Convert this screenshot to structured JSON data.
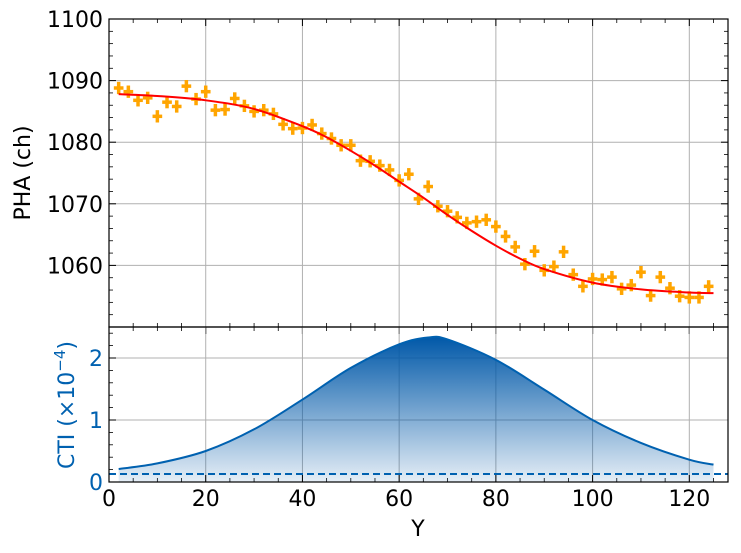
{
  "chart_data": [
    {
      "type": "scatter",
      "panel": "top",
      "ylabel": "PHA (ch)",
      "xlim": [
        0,
        128
      ],
      "ylim": [
        1050,
        1100
      ],
      "yticks": [
        1060,
        1070,
        1080,
        1090,
        1100
      ],
      "ytick_labels": [
        "1060",
        "1070",
        "1080",
        "1090",
        "1100"
      ],
      "grid": true,
      "series": [
        {
          "kind": "points-with-errorbars",
          "color": "#FFA500",
          "x_err": 1,
          "y_err": 1,
          "x": [
            2,
            4,
            6,
            8,
            10,
            12,
            14,
            16,
            18,
            20,
            22,
            24,
            26,
            28,
            30,
            32,
            34,
            36,
            38,
            40,
            42,
            44,
            46,
            48,
            50,
            52,
            54,
            56,
            58,
            60,
            62,
            64,
            66,
            68,
            70,
            72,
            74,
            76,
            78,
            80,
            82,
            84,
            86,
            88,
            90,
            92,
            94,
            96,
            98,
            100,
            102,
            104,
            106,
            108,
            110,
            112,
            114,
            116,
            118,
            120,
            122,
            124
          ],
          "y": [
            1088.8,
            1088.2,
            1086.8,
            1087.2,
            1084.2,
            1086.5,
            1085.8,
            1089.1,
            1087.0,
            1088.2,
            1085.2,
            1085.3,
            1087.1,
            1085.9,
            1085.0,
            1085.2,
            1084.6,
            1082.9,
            1082.2,
            1082.3,
            1082.8,
            1081.4,
            1080.6,
            1079.5,
            1079.5,
            1077.0,
            1076.9,
            1076.2,
            1075.5,
            1073.8,
            1074.8,
            1070.8,
            1072.8,
            1069.6,
            1068.8,
            1067.8,
            1066.9,
            1067.1,
            1067.4,
            1066.3,
            1064.7,
            1063.0,
            1060.2,
            1062.3,
            1059.2,
            1059.8,
            1062.2,
            1058.5,
            1056.6,
            1057.8,
            1057.7,
            1058.1,
            1056.2,
            1056.8,
            1058.9,
            1055.1,
            1058.1,
            1056.3,
            1055.0,
            1054.8,
            1054.8,
            1056.6
          ]
        },
        {
          "kind": "fit-line",
          "color": "#FF0000",
          "x": [
            2,
            10,
            20,
            30,
            40,
            45,
            50,
            55,
            60,
            65,
            70,
            75,
            80,
            85,
            90,
            100,
            110,
            120,
            125
          ],
          "y": [
            1087.8,
            1087.5,
            1086.8,
            1085.4,
            1082.6,
            1080.8,
            1078.6,
            1076.2,
            1073.6,
            1071.0,
            1068.2,
            1065.6,
            1063.2,
            1061.1,
            1059.4,
            1057.2,
            1056.1,
            1055.6,
            1055.5
          ]
        }
      ]
    },
    {
      "type": "area",
      "panel": "bottom",
      "xlabel": "Y",
      "ylabel_prefix": "CTI (×10",
      "ylabel_exp": "−4",
      "ylabel_suffix": ")",
      "xlim": [
        0,
        128
      ],
      "ylim": [
        0,
        2.5
      ],
      "yticks": [
        0,
        1,
        2
      ],
      "ytick_labels": [
        "0",
        "1",
        "2"
      ],
      "xticks": [
        0,
        20,
        40,
        60,
        80,
        100,
        120
      ],
      "xtick_labels": [
        "0",
        "20",
        "40",
        "60",
        "80",
        "100",
        "120"
      ],
      "grid": true,
      "color": "#0061B0",
      "curve": {
        "x": [
          2,
          10,
          20,
          30,
          40,
          50,
          60,
          66,
          70,
          80,
          90,
          100,
          110,
          120,
          125
        ],
        "y": [
          0.21,
          0.3,
          0.5,
          0.85,
          1.33,
          1.84,
          2.22,
          2.33,
          2.3,
          1.97,
          1.49,
          1.0,
          0.63,
          0.36,
          0.28
        ]
      },
      "baseline": 0.13
    }
  ]
}
